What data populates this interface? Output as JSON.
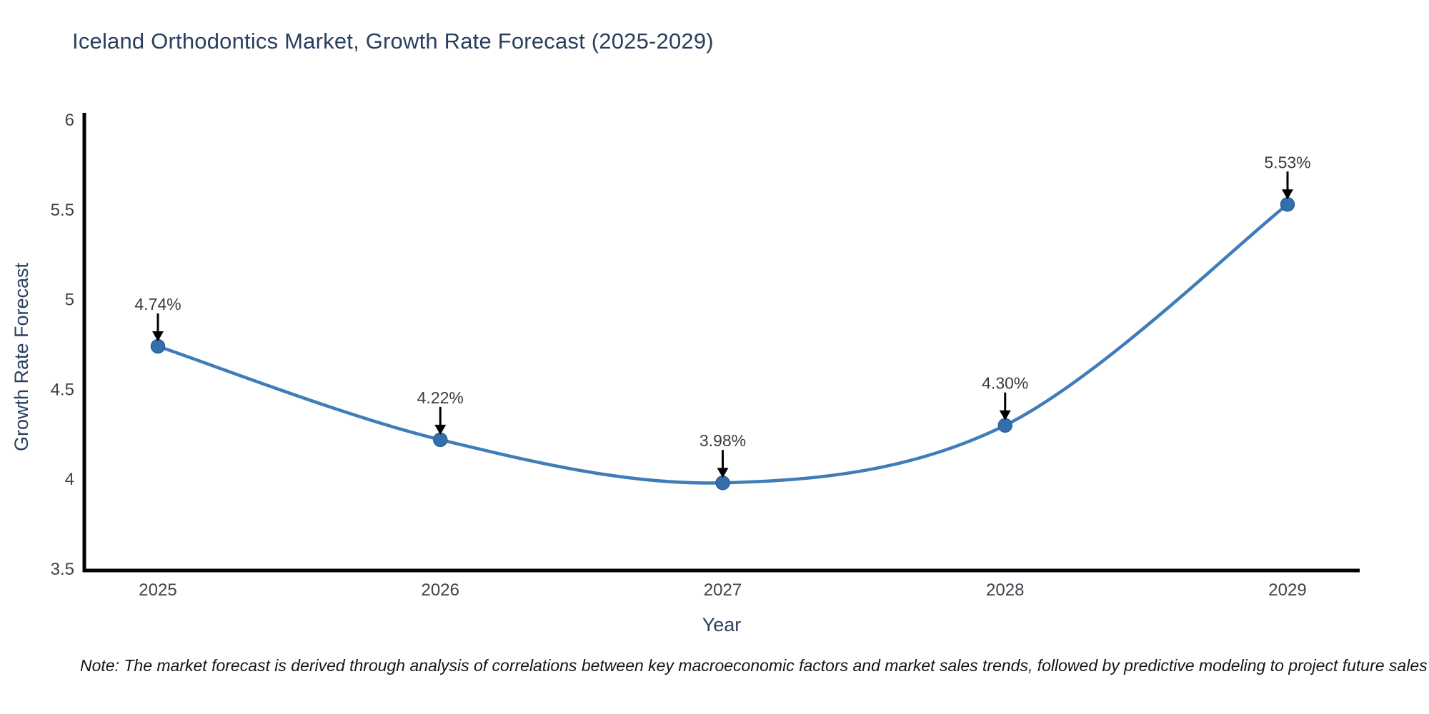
{
  "chart_data": {
    "type": "line",
    "title": "Iceland Orthodontics Market, Growth Rate Forecast (2025-2029)",
    "xlabel": "Year",
    "ylabel": "Growth Rate Forecast",
    "categories": [
      "2025",
      "2026",
      "2027",
      "2028",
      "2029"
    ],
    "values": [
      4.74,
      4.22,
      3.98,
      4.3,
      5.53
    ],
    "point_labels": [
      "4.74%",
      "4.22%",
      "3.98%",
      "4.30%",
      "5.53%"
    ],
    "ylim": [
      3.5,
      6
    ],
    "yticks": [
      6,
      5.5,
      5,
      4.5,
      4,
      3.5
    ],
    "ytick_labels": [
      "6",
      "5.5",
      "5",
      "4.5",
      "4",
      "3.5"
    ],
    "line_shape": "spline",
    "grid": false,
    "legend_position": "none",
    "colors": {
      "line": "#3f7db9",
      "marker_fill": "#336fad",
      "marker_edge": "#2c6094",
      "axis_line": "#000000",
      "arrow": "#000000",
      "title_text": "#2a3f5f",
      "axis_title_text": "#2a3f5f",
      "tick_text": "#3d434b",
      "annotation_text": "#363b42",
      "background": "#ffffff",
      "note_text": "#151515"
    },
    "note": "Note: The market forecast is derived through analysis of correlations between key macroeconomic factors and market sales trends, followed by predictive modeling to project future sales"
  }
}
